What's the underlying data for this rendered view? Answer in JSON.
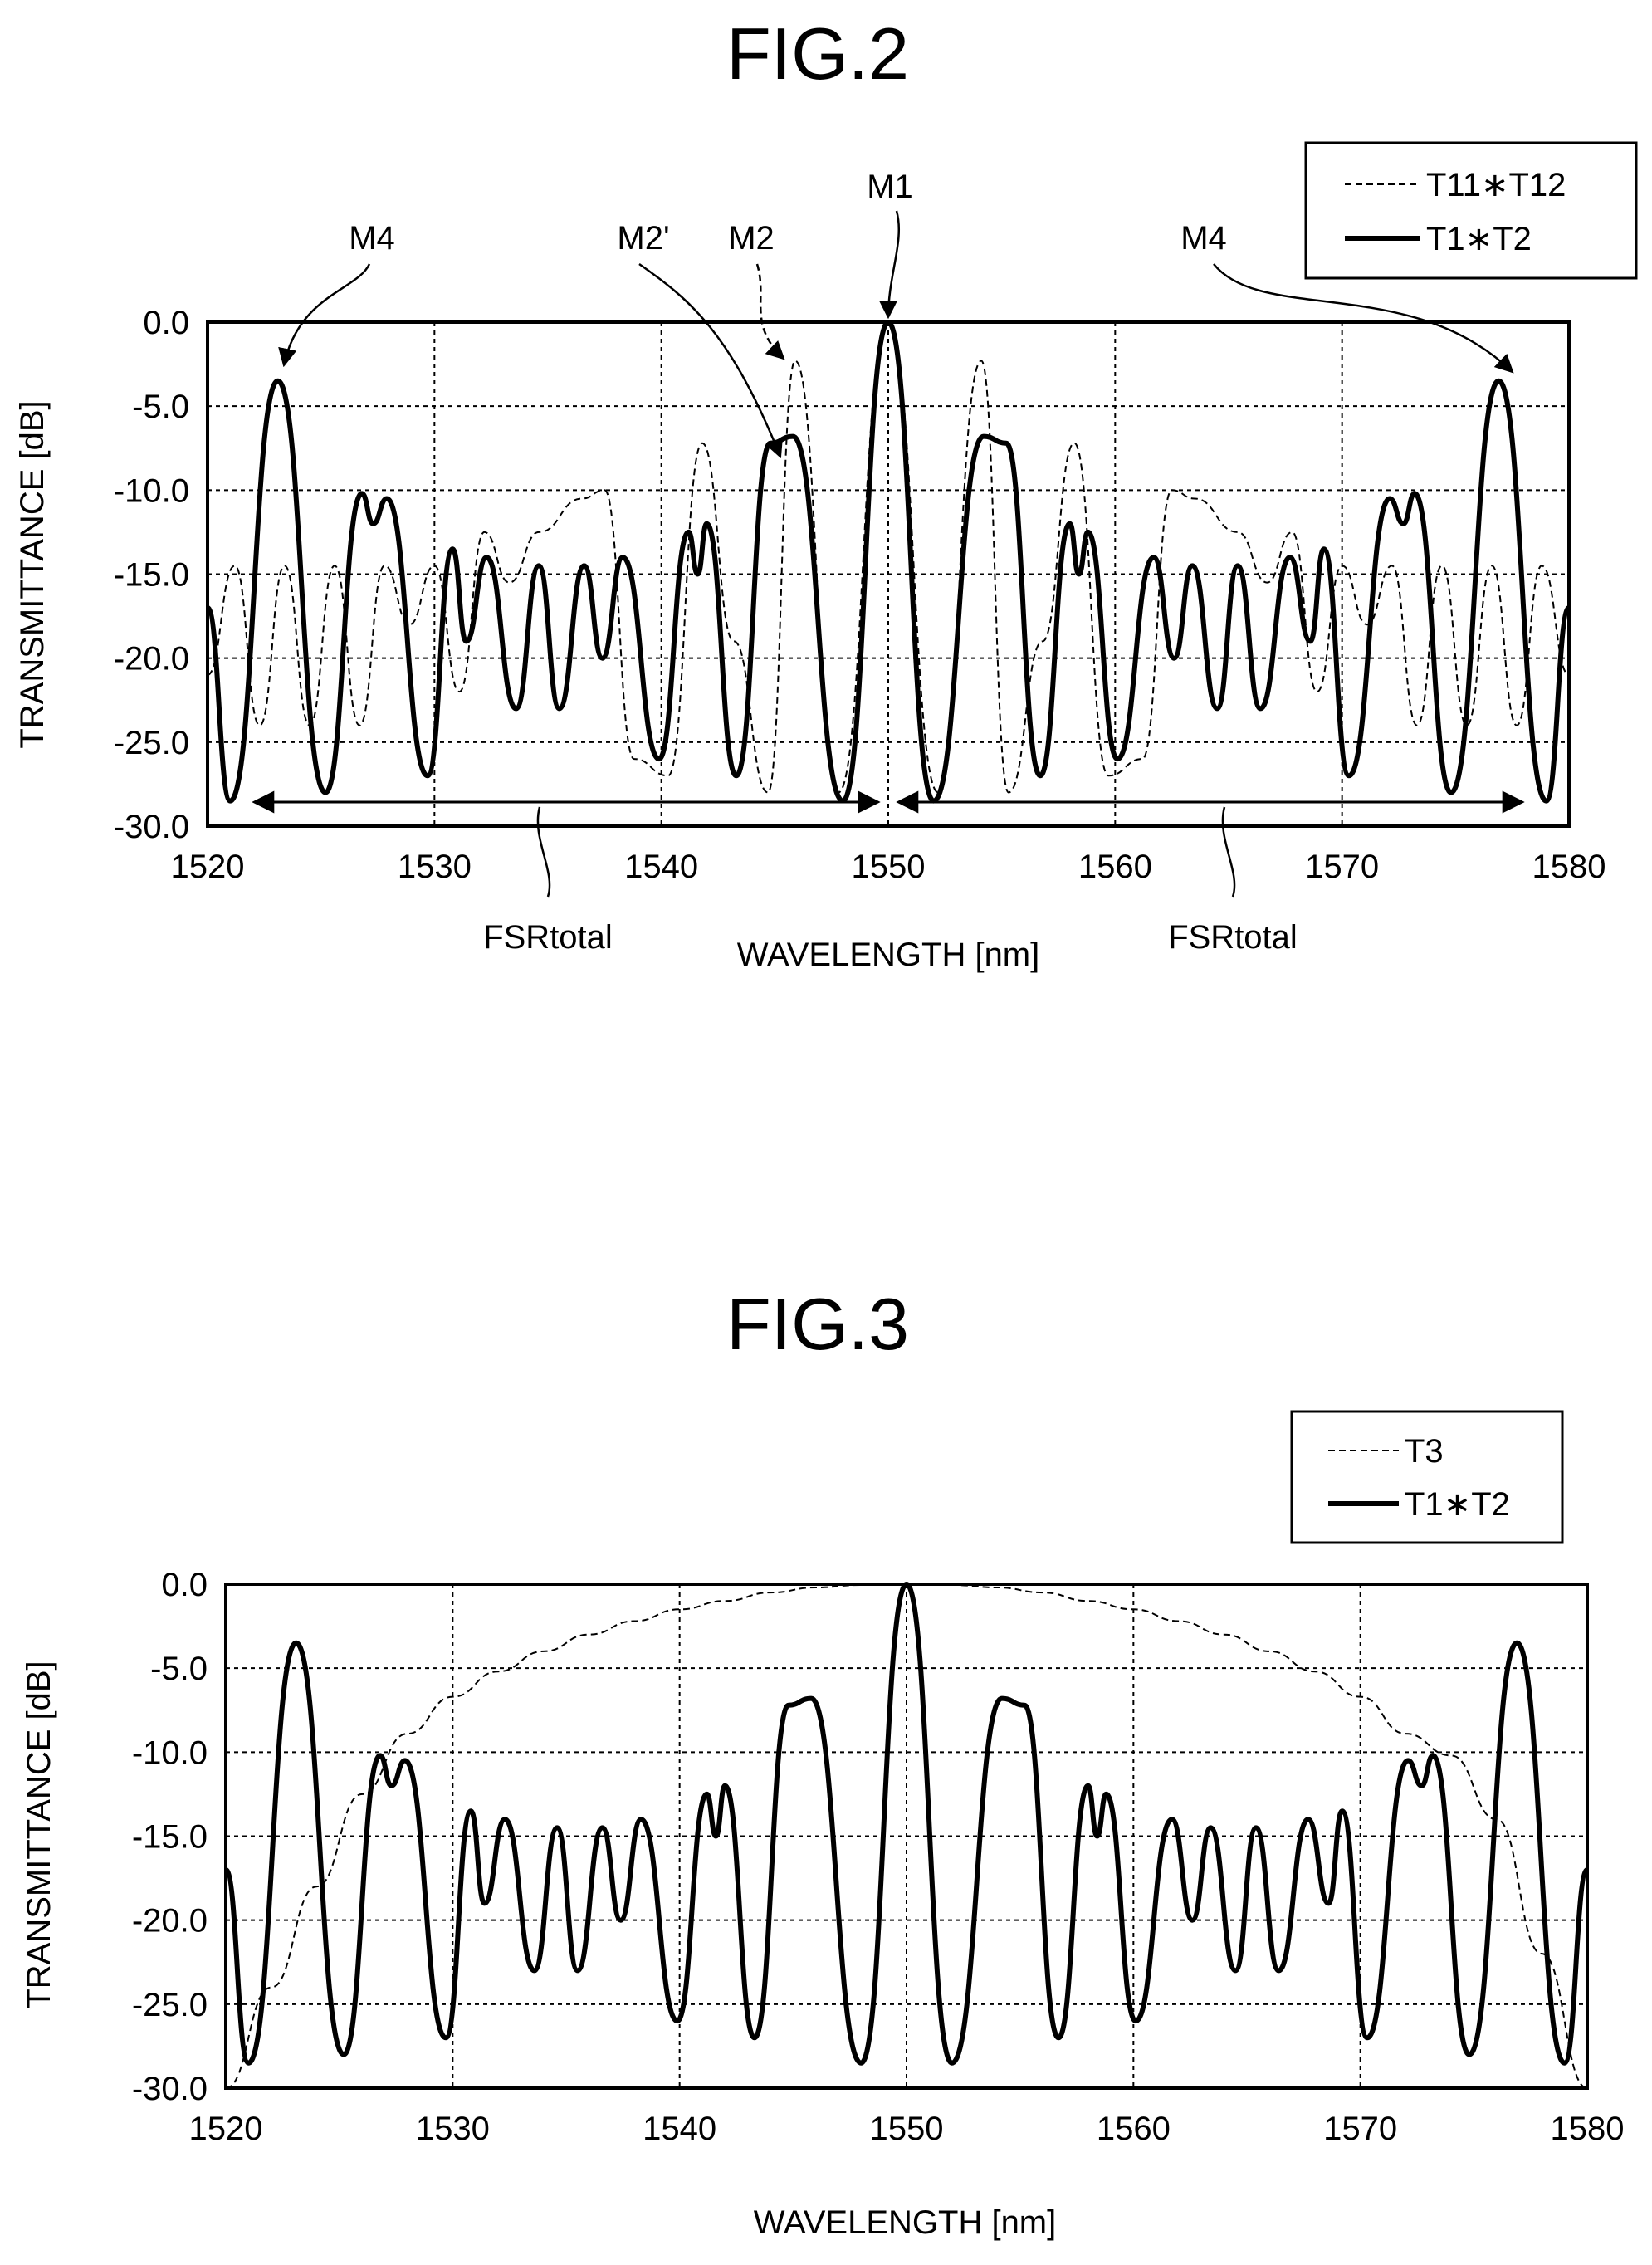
{
  "figures": [
    {
      "title": "FIG.2"
    },
    {
      "title": "FIG.3"
    }
  ],
  "colors": {
    "ink": "#000000",
    "background": "#ffffff"
  },
  "chart_data": [
    {
      "type": "line",
      "xlabel": "WAVELENGTH [nm]",
      "ylabel": "TRANSMITTANCE [dB]",
      "xlim": [
        1520,
        1580
      ],
      "ylim": [
        -30,
        0
      ],
      "x_ticks": [
        1520,
        1530,
        1540,
        1550,
        1560,
        1570,
        1580
      ],
      "y_ticks": [
        "0.0",
        "-5.0",
        "-10.0",
        "-15.0",
        "-20.0",
        "-25.0",
        "-30.0"
      ],
      "grid": true,
      "legend_position": "top-right",
      "series": [
        {
          "name": "T11∗T12",
          "style": "dashed",
          "x": [
            1520.0,
            1521.2,
            1522.3,
            1523.4,
            1524.5,
            1525.6,
            1526.7,
            1527.8,
            1528.9,
            1530.0,
            1531.1,
            1532.2,
            1533.3,
            1534.6,
            1536.5,
            1537.5,
            1538.8,
            1540.3,
            1541.8,
            1543.2,
            1544.7,
            1545.9,
            1547.8,
            1550.0,
            1552.2,
            1554.1,
            1555.3,
            1556.8,
            1558.2,
            1559.7,
            1561.2,
            1562.5,
            1563.5,
            1565.4,
            1566.7,
            1567.8,
            1568.9,
            1570.0,
            1571.1,
            1572.2,
            1573.3,
            1574.4,
            1575.5,
            1576.6,
            1577.7,
            1578.8,
            1580.0
          ],
          "values": [
            -21,
            -14.5,
            -24,
            -14.5,
            -24,
            -14.5,
            -24,
            -14.5,
            -18,
            -14.5,
            -22,
            -12.5,
            -15.5,
            -12.5,
            -10.5,
            -10,
            -26,
            -27,
            -7.2,
            -19,
            -28,
            -2.3,
            -28,
            0,
            -28,
            -2.3,
            -28,
            -19,
            -7.2,
            -27,
            -26,
            -10,
            -10.5,
            -12.5,
            -15.5,
            -12.5,
            -22,
            -14.5,
            -18,
            -14.5,
            -24,
            -14.5,
            -24,
            -14.5,
            -24,
            -14.5,
            -21
          ]
        },
        {
          "name": "T1∗T2",
          "style": "solid",
          "x": [
            1520.0,
            1521.0,
            1523.1,
            1525.2,
            1526.8,
            1527.3,
            1527.9,
            1529.7,
            1530.8,
            1531.4,
            1532.3,
            1533.6,
            1534.6,
            1535.5,
            1536.6,
            1537.4,
            1538.3,
            1539.9,
            1541.2,
            1541.6,
            1542.0,
            1543.3,
            1544.8,
            1545.8,
            1548.0,
            1550.0,
            1552.0,
            1554.2,
            1555.2,
            1556.7,
            1558.0,
            1558.4,
            1558.8,
            1560.1,
            1561.7,
            1562.6,
            1563.4,
            1564.5,
            1565.4,
            1566.4,
            1567.7,
            1568.6,
            1569.2,
            1570.3,
            1572.1,
            1572.7,
            1573.2,
            1574.8,
            1576.9,
            1579.0,
            1580.0
          ],
          "values": [
            -17,
            -28.5,
            -3.5,
            -28,
            -10.2,
            -12,
            -10.5,
            -27,
            -13.5,
            -19,
            -14,
            -23,
            -14.5,
            -23,
            -14.5,
            -20,
            -14,
            -26,
            -12.5,
            -15,
            -12,
            -27,
            -7.2,
            -6.8,
            -28.5,
            0,
            -28.5,
            -6.8,
            -7.2,
            -27,
            -12,
            -15,
            -12.5,
            -26,
            -14,
            -20,
            -14.5,
            -23,
            -14.5,
            -23,
            -14,
            -19,
            -13.5,
            -27,
            -10.5,
            -12,
            -10.2,
            -28,
            -3.5,
            -28.5,
            -17
          ]
        }
      ],
      "annotations": [
        {
          "text": "M4",
          "target": [
            1523.1,
            -3.5
          ]
        },
        {
          "text": "M2'",
          "target": [
            1545.3,
            -7.0
          ]
        },
        {
          "text": "M2",
          "target": [
            1545.7,
            -2.4
          ]
        },
        {
          "text": "M1",
          "target": [
            1550.0,
            0.0
          ]
        },
        {
          "text": "M4",
          "target": [
            1577.8,
            -3.5
          ]
        },
        {
          "text": "FSRtotal",
          "span": [
            1521.0,
            1550.0
          ]
        },
        {
          "text": "FSRtotal",
          "span": [
            1550.0,
            1578.9
          ]
        }
      ]
    },
    {
      "type": "line",
      "xlabel": "WAVELENGTH [nm]",
      "ylabel": "TRANSMITTANCE [dB]",
      "xlim": [
        1520,
        1580
      ],
      "ylim": [
        -30,
        0
      ],
      "x_ticks": [
        1520,
        1530,
        1540,
        1550,
        1560,
        1570,
        1580
      ],
      "y_ticks": [
        "0.0",
        "-5.0",
        "-10.0",
        "-15.0",
        "-20.0",
        "-25.0",
        "-30.0"
      ],
      "grid": true,
      "legend_position": "top-right",
      "series": [
        {
          "name": "T3",
          "style": "dashed",
          "x": [
            1520,
            1522,
            1524,
            1526,
            1528,
            1530,
            1532,
            1534,
            1536,
            1538,
            1540,
            1542,
            1544,
            1546,
            1548,
            1550,
            1552,
            1554,
            1556,
            1558,
            1560,
            1562,
            1564,
            1566,
            1568,
            1570,
            1572,
            1574,
            1576,
            1578,
            1580
          ],
          "values": [
            -30,
            -24,
            -18,
            -12.5,
            -8.9,
            -6.7,
            -5.2,
            -4.0,
            -3.0,
            -2.2,
            -1.5,
            -1.0,
            -0.5,
            -0.2,
            -0.05,
            0,
            -0.05,
            -0.2,
            -0.5,
            -1.0,
            -1.5,
            -2.2,
            -3.0,
            -4.0,
            -5.2,
            -6.7,
            -8.9,
            -10.2,
            -14,
            -22,
            -30
          ]
        },
        {
          "name": "T1∗T2",
          "style": "solid",
          "x": [
            1520.0,
            1521.0,
            1523.1,
            1525.2,
            1526.8,
            1527.3,
            1527.9,
            1529.7,
            1530.8,
            1531.4,
            1532.3,
            1533.6,
            1534.6,
            1535.5,
            1536.6,
            1537.4,
            1538.3,
            1539.9,
            1541.2,
            1541.6,
            1542.0,
            1543.3,
            1544.8,
            1545.8,
            1548.0,
            1550.0,
            1552.0,
            1554.2,
            1555.2,
            1556.7,
            1558.0,
            1558.4,
            1558.8,
            1560.1,
            1561.7,
            1562.6,
            1563.4,
            1564.5,
            1565.4,
            1566.4,
            1567.7,
            1568.6,
            1569.2,
            1570.3,
            1572.1,
            1572.7,
            1573.2,
            1574.8,
            1576.9,
            1579.0,
            1580.0
          ],
          "values": [
            -17,
            -28.5,
            -3.5,
            -28,
            -10.2,
            -12,
            -10.5,
            -27,
            -13.5,
            -19,
            -14,
            -23,
            -14.5,
            -23,
            -14.5,
            -20,
            -14,
            -26,
            -12.5,
            -15,
            -12,
            -27,
            -7.2,
            -6.8,
            -28.5,
            0,
            -28.5,
            -6.8,
            -7.2,
            -27,
            -12,
            -15,
            -12.5,
            -26,
            -14,
            -20,
            -14.5,
            -23,
            -14.5,
            -23,
            -14,
            -19,
            -13.5,
            -27,
            -10.5,
            -12,
            -10.2,
            -28,
            -3.5,
            -28.5,
            -17
          ]
        }
      ]
    }
  ]
}
